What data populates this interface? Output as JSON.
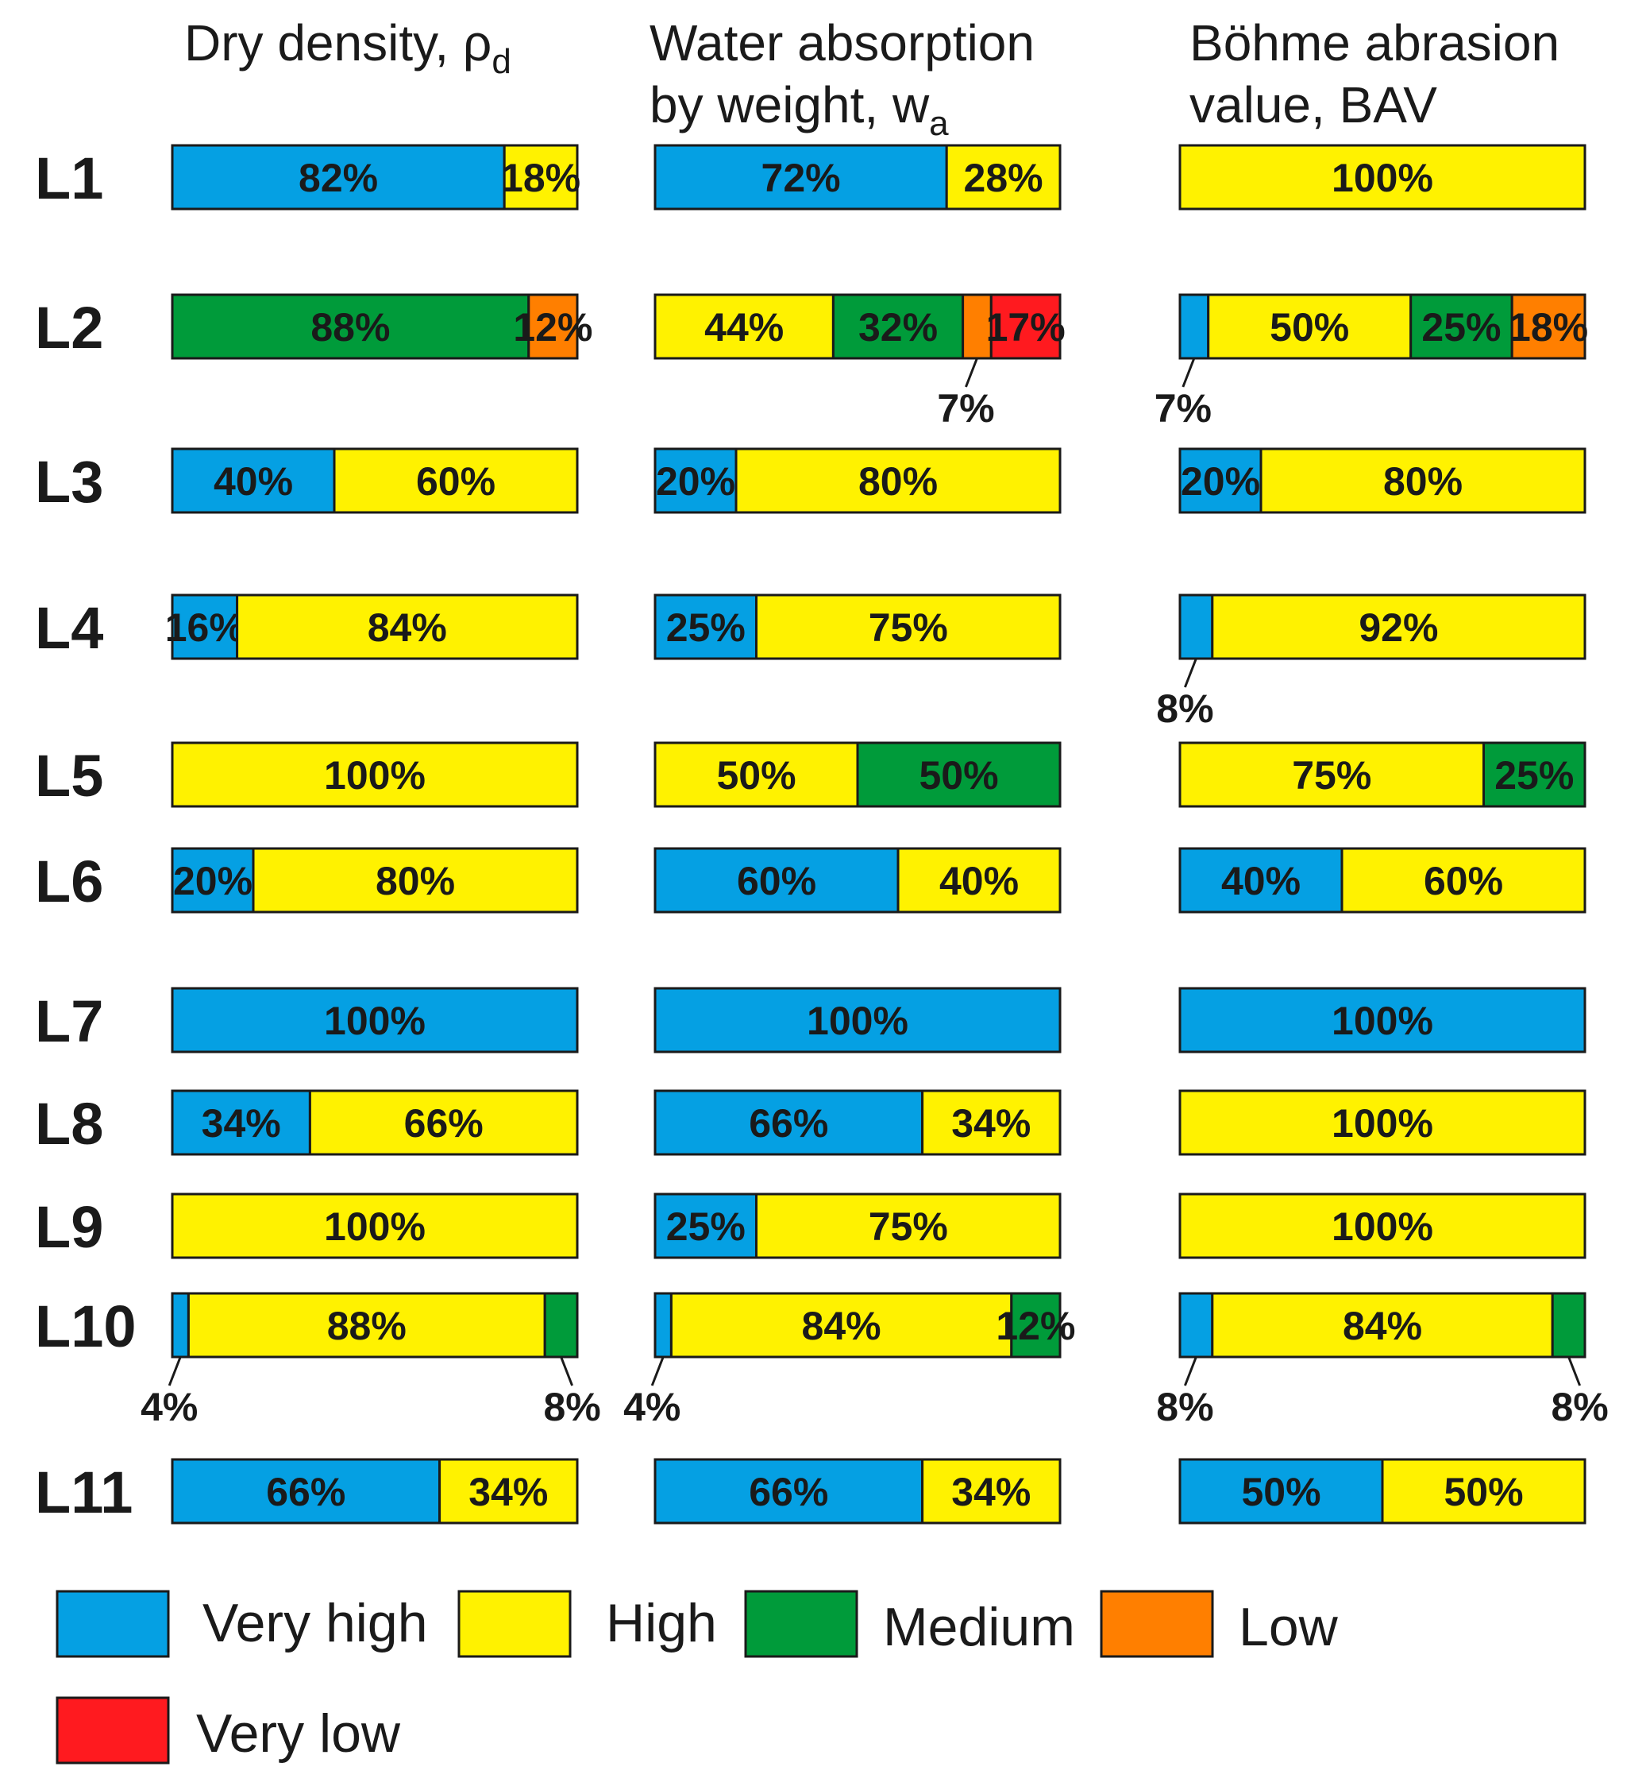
{
  "chart_data": {
    "type": "bar",
    "orientation": "horizontal-stacked-100",
    "panels": [
      {
        "title_main": "Dry density, ρ",
        "title_sub": "d",
        "title_line2": ""
      },
      {
        "title_main": "Water absorption",
        "title_line2_main": "by weight, w",
        "title_sub": "a"
      },
      {
        "title_main": "Böhme abrasion",
        "title_line2_main": "value, BAV",
        "title_sub": ""
      }
    ],
    "categories": [
      "L1",
      "L2",
      "L3",
      "L4",
      "L5",
      "L6",
      "L7",
      "L8",
      "L9",
      "L10",
      "L11"
    ],
    "classes": [
      {
        "key": "vh",
        "name": "Very high",
        "color": "#05a0e3"
      },
      {
        "key": "h",
        "name": "High",
        "color": "#fff200"
      },
      {
        "key": "m",
        "name": "Medium",
        "color": "#009b3a"
      },
      {
        "key": "l",
        "name": "Low",
        "color": "#ff7f00"
      },
      {
        "key": "vl",
        "name": "Very low",
        "color": "#ff1a1f"
      }
    ],
    "data": [
      [
        [
          [
            "vh",
            82
          ],
          [
            "h",
            18
          ]
        ],
        [
          [
            "vh",
            72
          ],
          [
            "h",
            28
          ]
        ],
        [
          [
            "h",
            100
          ]
        ]
      ],
      [
        [
          [
            "m",
            88
          ],
          [
            "l",
            12
          ]
        ],
        [
          [
            "h",
            44
          ],
          [
            "m",
            32
          ],
          [
            "l",
            7
          ],
          [
            "vl",
            17
          ]
        ],
        [
          [
            "vh",
            7
          ],
          [
            "h",
            50
          ],
          [
            "m",
            25
          ],
          [
            "l",
            18
          ]
        ]
      ],
      [
        [
          [
            "vh",
            40
          ],
          [
            "h",
            60
          ]
        ],
        [
          [
            "vh",
            20
          ],
          [
            "h",
            80
          ]
        ],
        [
          [
            "vh",
            20
          ],
          [
            "h",
            80
          ]
        ]
      ],
      [
        [
          [
            "vh",
            16
          ],
          [
            "h",
            84
          ]
        ],
        [
          [
            "vh",
            25
          ],
          [
            "h",
            75
          ]
        ],
        [
          [
            "vh",
            8
          ],
          [
            "h",
            92
          ]
        ]
      ],
      [
        [
          [
            "h",
            100
          ]
        ],
        [
          [
            "h",
            50
          ],
          [
            "m",
            50
          ]
        ],
        [
          [
            "h",
            75
          ],
          [
            "m",
            25
          ]
        ]
      ],
      [
        [
          [
            "vh",
            20
          ],
          [
            "h",
            80
          ]
        ],
        [
          [
            "vh",
            60
          ],
          [
            "h",
            40
          ]
        ],
        [
          [
            "vh",
            40
          ],
          [
            "h",
            60
          ]
        ]
      ],
      [
        [
          [
            "vh",
            100
          ]
        ],
        [
          [
            "vh",
            100
          ]
        ],
        [
          [
            "vh",
            100
          ]
        ]
      ],
      [
        [
          [
            "vh",
            34
          ],
          [
            "h",
            66
          ]
        ],
        [
          [
            "vh",
            66
          ],
          [
            "h",
            34
          ]
        ],
        [
          [
            "h",
            100
          ]
        ]
      ],
      [
        [
          [
            "h",
            100
          ]
        ],
        [
          [
            "vh",
            25
          ],
          [
            "h",
            75
          ]
        ],
        [
          [
            "h",
            100
          ]
        ]
      ],
      [
        [
          [
            "vh",
            4
          ],
          [
            "h",
            88
          ],
          [
            "m",
            8
          ]
        ],
        [
          [
            "vh",
            4
          ],
          [
            "h",
            84
          ],
          [
            "m",
            12
          ]
        ],
        [
          [
            "vh",
            8
          ],
          [
            "h",
            84
          ],
          [
            "m",
            8
          ]
        ]
      ],
      [
        [
          [
            "vh",
            66
          ],
          [
            "h",
            34
          ]
        ],
        [
          [
            "vh",
            66
          ],
          [
            "h",
            34
          ]
        ],
        [
          [
            "vh",
            50
          ],
          [
            "h",
            50
          ]
        ]
      ]
    ],
    "unit": "%"
  }
}
